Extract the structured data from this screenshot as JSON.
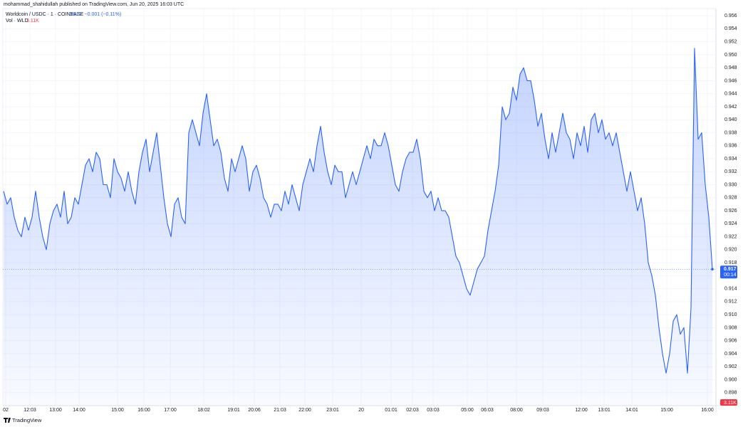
{
  "attribution": "mohammad_shahidullah published on TradingView.com, Jun 20, 2025 16:03 UTC",
  "branding": "TradingView",
  "chart_data": {
    "type": "area",
    "title": "Worldcoin / USDC · 1 · COINBASE",
    "last_price": "0.917",
    "change": "−0.001 (−0.11%)",
    "volume_label": "Vol · WLD",
    "volume": "3.11K",
    "countdown": "00:14",
    "color": "#2962ff",
    "grid": true,
    "values": [
      0.929,
      0.927,
      0.928,
      0.925,
      0.923,
      0.922,
      0.925,
      0.923,
      0.925,
      0.929,
      0.925,
      0.922,
      0.92,
      0.924,
      0.926,
      0.927,
      0.925,
      0.929,
      0.924,
      0.925,
      0.928,
      0.927,
      0.93,
      0.933,
      0.934,
      0.932,
      0.935,
      0.934,
      0.93,
      0.93,
      0.928,
      0.934,
      0.932,
      0.931,
      0.929,
      0.932,
      0.929,
      0.927,
      0.932,
      0.935,
      0.937,
      0.932,
      0.935,
      0.938,
      0.933,
      0.928,
      0.924,
      0.922,
      0.927,
      0.928,
      0.925,
      0.924,
      0.938,
      0.94,
      0.938,
      0.936,
      0.941,
      0.944,
      0.94,
      0.936,
      0.937,
      0.935,
      0.931,
      0.929,
      0.934,
      0.932,
      0.934,
      0.936,
      0.934,
      0.929,
      0.932,
      0.933,
      0.931,
      0.928,
      0.927,
      0.925,
      0.927,
      0.927,
      0.926,
      0.929,
      0.927,
      0.93,
      0.928,
      0.926,
      0.93,
      0.932,
      0.934,
      0.932,
      0.936,
      0.939,
      0.935,
      0.932,
      0.93,
      0.933,
      0.932,
      0.932,
      0.928,
      0.93,
      0.932,
      0.93,
      0.932,
      0.934,
      0.936,
      0.934,
      0.937,
      0.936,
      0.936,
      0.938,
      0.936,
      0.933,
      0.93,
      0.929,
      0.932,
      0.934,
      0.935,
      0.935,
      0.937,
      0.934,
      0.929,
      0.928,
      0.929,
      0.926,
      0.928,
      0.926,
      0.926,
      0.925,
      0.922,
      0.919,
      0.918,
      0.916,
      0.914,
      0.913,
      0.915,
      0.917,
      0.918,
      0.919,
      0.923,
      0.926,
      0.929,
      0.933,
      0.942,
      0.94,
      0.941,
      0.945,
      0.943,
      0.947,
      0.948,
      0.946,
      0.946,
      0.943,
      0.939,
      0.941,
      0.937,
      0.934,
      0.938,
      0.935,
      0.938,
      0.941,
      0.938,
      0.937,
      0.934,
      0.938,
      0.936,
      0.939,
      0.935,
      0.94,
      0.941,
      0.938,
      0.94,
      0.937,
      0.938,
      0.936,
      0.938,
      0.935,
      0.932,
      0.929,
      0.932,
      0.929,
      0.926,
      0.928,
      0.924,
      0.918,
      0.916,
      0.913,
      0.908,
      0.904,
      0.901,
      0.904,
      0.909,
      0.91,
      0.907,
      0.908,
      0.901,
      0.911,
      0.951,
      0.937,
      0.938,
      0.93,
      0.925,
      0.917
    ],
    "xlim": [
      0,
      199
    ],
    "xticks": [
      {
        "value": 0.6,
        "label": "02"
      },
      {
        "value": 7.4,
        "label": "12:03"
      },
      {
        "value": 14.6,
        "label": "13:00"
      },
      {
        "value": 21.2,
        "label": "14:00"
      },
      {
        "value": 32,
        "label": "15:00"
      },
      {
        "value": 39.4,
        "label": "16:00"
      },
      {
        "value": 46.8,
        "label": "17:00"
      },
      {
        "value": 56.2,
        "label": "18:02"
      },
      {
        "value": 64.6,
        "label": "19:01"
      },
      {
        "value": 70.4,
        "label": "20:06"
      },
      {
        "value": 77.6,
        "label": "21:03"
      },
      {
        "value": 84.6,
        "label": "22:00"
      },
      {
        "value": 92.4,
        "label": "23:01"
      },
      {
        "value": 100.4,
        "label": "20"
      },
      {
        "value": 108.8,
        "label": "01:01"
      },
      {
        "value": 114.8,
        "label": "02:03"
      },
      {
        "value": 120.6,
        "label": "03:03"
      },
      {
        "value": 130.2,
        "label": "05:00"
      },
      {
        "value": 135.8,
        "label": "06:03"
      },
      {
        "value": 144,
        "label": "08:00"
      },
      {
        "value": 151.4,
        "label": "09:03"
      },
      {
        "value": 162.2,
        "label": "12:00"
      },
      {
        "value": 168.6,
        "label": "13:01"
      },
      {
        "value": 176.4,
        "label": "14:01"
      },
      {
        "value": 186.2,
        "label": "15:00"
      },
      {
        "value": 197.6,
        "label": "16:00"
      }
    ],
    "ylim": [
      0.896,
      0.957
    ],
    "yticks": [
      0.898,
      {
        "value": 0.9,
        "label": "0.900"
      },
      0.902,
      0.904,
      0.906,
      0.908,
      {
        "value": 0.91,
        "label": "0.910"
      },
      0.912,
      0.914,
      0.916,
      0.918,
      {
        "value": 0.92,
        "label": "0.920"
      },
      0.922,
      0.924,
      0.926,
      0.928,
      {
        "value": 0.93,
        "label": "0.930"
      },
      0.932,
      0.934,
      0.936,
      0.938,
      {
        "value": 0.94,
        "label": "0.940"
      },
      0.942,
      0.944,
      0.946,
      0.948,
      {
        "value": 0.95,
        "label": "0.950"
      },
      0.952,
      0.954,
      0.956
    ]
  }
}
